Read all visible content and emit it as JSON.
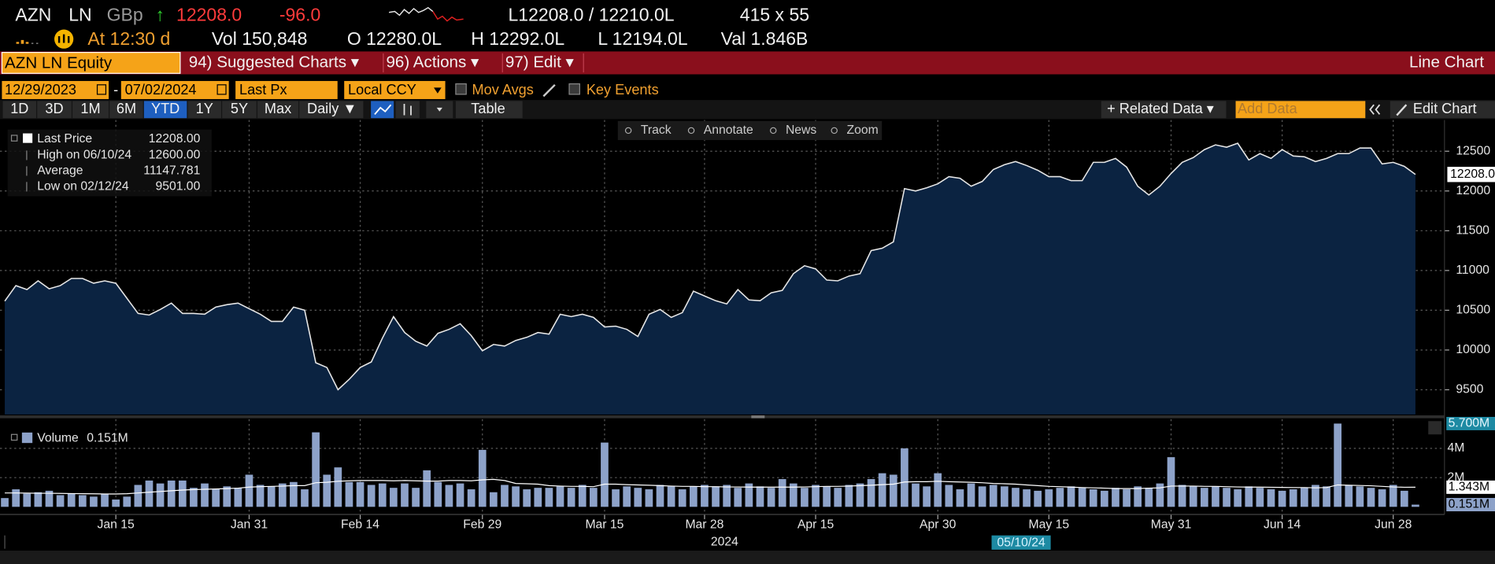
{
  "header": {
    "ticker": "AZN",
    "exchange": "LN",
    "currency": "GBp",
    "arrow": "↑",
    "last": "12208.0",
    "change": "-96.0",
    "bid_ask": "L12208.0 / 12210.0L",
    "size": "415 x 55",
    "time": "At 12:30 d",
    "volume": "Vol 150,848",
    "open": "O 12280.0L",
    "high": "H 12292.0L",
    "low": "L 12194.0L",
    "value": "Val 1.846B"
  },
  "command_bar": {
    "security": "AZN LN Equity",
    "menus": [
      "94) Suggested Charts ▾",
      "96) Actions ▾",
      "97) Edit ▾"
    ],
    "chart_name": "Line Chart"
  },
  "settings": {
    "start": "12/29/2023",
    "dash": "-",
    "end": "07/02/2024",
    "field": "Last Px",
    "currency": "Local CCY",
    "mov_avgs": "Mov Avgs",
    "key_events": "Key Events"
  },
  "toolbar": {
    "periods": [
      "1D",
      "3D",
      "1M",
      "6M",
      "YTD",
      "1Y",
      "5Y",
      "Max"
    ],
    "active_period": 4,
    "frequency": "Daily ▼",
    "table": "Table",
    "related": "+ Related Data ▾",
    "add_data": "Add Data",
    "edit_chart": "Edit Chart"
  },
  "chart_tools": [
    "Track",
    "Annotate",
    "News",
    "Zoom"
  ],
  "chart_data": {
    "type": "line",
    "categories": [
      null,
      null,
      null,
      null,
      null,
      null,
      null,
      null,
      null,
      null,
      "Jan 15",
      null,
      null,
      null,
      null,
      null,
      null,
      null,
      null,
      null,
      null,
      null,
      "Jan 31",
      null,
      null,
      null,
      null,
      null,
      null,
      null,
      null,
      null,
      "Feb 14",
      null,
      null,
      null,
      null,
      null,
      null,
      null,
      null,
      null,
      null,
      "Feb 29",
      null,
      null,
      null,
      null,
      null,
      null,
      null,
      null,
      null,
      null,
      "Mar 15",
      null,
      null,
      null,
      null,
      null,
      null,
      null,
      null,
      "Mar 28",
      null,
      null,
      null,
      null,
      null,
      null,
      null,
      null,
      null,
      "Apr 15",
      null,
      null,
      null,
      null,
      null,
      null,
      null,
      null,
      null,
      null,
      "Apr 30",
      null,
      null,
      null,
      null,
      null,
      null,
      null,
      null,
      null,
      "May 15",
      null,
      null,
      null,
      null,
      null,
      null,
      null,
      null,
      null,
      null,
      "May 31",
      null,
      null,
      null,
      null,
      null,
      null,
      null,
      null,
      null,
      "Jun 14",
      null,
      null,
      null,
      null,
      null,
      null,
      null,
      null,
      null,
      "Jun 28",
      null,
      null
    ],
    "year_label": "2024",
    "cursor_label": "05/10/24",
    "series": [
      {
        "name": "Last Price",
        "legend_value": "12208.00",
        "color": "#e6e6e6",
        "fill": "#0b2341",
        "values": [
          10615,
          10810,
          10760,
          10870,
          10770,
          10810,
          10900,
          10900,
          10840,
          10870,
          10840,
          10650,
          10460,
          10440,
          10510,
          10590,
          10460,
          10460,
          10450,
          10540,
          10570,
          10590,
          10520,
          10450,
          10360,
          10360,
          10540,
          10500,
          9840,
          9780,
          9501,
          9630,
          9780,
          9850,
          10150,
          10420,
          10220,
          10110,
          10050,
          10210,
          10260,
          10330,
          10180,
          9990,
          10070,
          10050,
          10120,
          10160,
          10220,
          10200,
          10450,
          10420,
          10450,
          10410,
          10290,
          10300,
          10260,
          10170,
          10450,
          10510,
          10410,
          10470,
          10740,
          10680,
          10620,
          10580,
          10760,
          10630,
          10620,
          10720,
          10750,
          10960,
          11060,
          11020,
          10880,
          10870,
          10930,
          10960,
          11250,
          11280,
          11360,
          12030,
          12000,
          12040,
          12090,
          12180,
          12160,
          12060,
          12120,
          12270,
          12330,
          12370,
          12320,
          12260,
          12180,
          12180,
          12130,
          12130,
          12360,
          12360,
          12410,
          12300,
          12060,
          11950,
          12060,
          12220,
          12360,
          12420,
          12520,
          12580,
          12550,
          12600,
          12390,
          12470,
          12410,
          12520,
          12440,
          12430,
          12370,
          12410,
          12470,
          12470,
          12540,
          12540,
          12340,
          12360,
          12310,
          12208
        ]
      }
    ],
    "legend": [
      {
        "label": "High on 06/10/24",
        "value": "12600.00"
      },
      {
        "label": "Average",
        "value": "11147.781"
      },
      {
        "label": "Low on 02/12/24",
        "value": "9501.00"
      }
    ],
    "ylim": [
      9190,
      12880
    ],
    "yticks": [
      9500,
      10000,
      10500,
      11000,
      11500,
      12000,
      12500
    ],
    "grid": true,
    "last_label": {
      "value": 12208,
      "label": "12208.0"
    },
    "volume": {
      "type": "bar",
      "name": "Volume",
      "legend_value": "0.151M",
      "color": "#8da2c9",
      "values": [
        0.6,
        1.2,
        0.9,
        1.0,
        1.1,
        0.8,
        0.9,
        0.8,
        0.7,
        0.9,
        0.5,
        0.7,
        1.5,
        1.8,
        1.6,
        1.8,
        1.8,
        1.3,
        1.6,
        1.2,
        1.4,
        1.3,
        2.2,
        1.5,
        1.4,
        1.6,
        1.7,
        1.2,
        5.1,
        2.2,
        2.7,
        1.7,
        1.7,
        1.5,
        1.6,
        1.3,
        1.6,
        1.3,
        2.5,
        1.7,
        1.5,
        1.6,
        1.2,
        3.9,
        1.0,
        1.5,
        1.4,
        1.2,
        1.3,
        1.3,
        1.4,
        1.3,
        1.5,
        1.3,
        4.4,
        1.2,
        1.4,
        1.3,
        1.2,
        1.5,
        1.4,
        1.2,
        1.4,
        1.5,
        1.4,
        1.5,
        1.3,
        1.6,
        1.4,
        1.3,
        1.9,
        1.6,
        1.3,
        1.5,
        1.4,
        1.3,
        1.5,
        1.6,
        1.9,
        2.3,
        2.2,
        4.0,
        1.6,
        1.4,
        2.3,
        1.5,
        1.2,
        1.6,
        1.4,
        1.5,
        1.4,
        1.3,
        1.2,
        1.1,
        1.2,
        1.3,
        1.4,
        1.3,
        1.2,
        1.1,
        1.3,
        1.2,
        1.4,
        1.3,
        1.6,
        3.4,
        1.5,
        1.4,
        1.3,
        1.4,
        1.3,
        1.2,
        1.4,
        1.3,
        1.2,
        1.1,
        1.2,
        1.3,
        1.5,
        1.4,
        5.7,
        1.5,
        1.4,
        1.3,
        1.2,
        1.5,
        1.1,
        0.151
      ],
      "average": {
        "color": "#ffffff",
        "values": [
          0.95,
          0.95,
          0.94,
          0.93,
          0.93,
          0.92,
          0.91,
          0.9,
          0.89,
          0.88,
          0.88,
          0.9,
          0.95,
          1.0,
          1.05,
          1.1,
          1.15,
          1.18,
          1.2,
          1.22,
          1.25,
          1.28,
          1.35,
          1.38,
          1.4,
          1.42,
          1.45,
          1.45,
          1.65,
          1.68,
          1.75,
          1.78,
          1.8,
          1.8,
          1.8,
          1.78,
          1.8,
          1.78,
          1.76,
          1.76,
          1.8,
          1.8,
          1.78,
          1.85,
          1.88,
          1.8,
          1.6,
          1.58,
          1.55,
          1.45,
          1.42,
          1.4,
          1.4,
          1.38,
          1.55,
          1.55,
          1.52,
          1.5,
          1.48,
          1.45,
          1.42,
          1.4,
          1.4,
          1.38,
          1.38,
          1.36,
          1.36,
          1.35,
          1.35,
          1.35,
          1.35,
          1.35,
          1.36,
          1.38,
          1.4,
          1.4,
          1.42,
          1.45,
          1.48,
          1.52,
          1.55,
          1.7,
          1.72,
          1.72,
          1.75,
          1.72,
          1.7,
          1.68,
          1.65,
          1.6,
          1.58,
          1.55,
          1.5,
          1.45,
          1.4,
          1.38,
          1.35,
          1.32,
          1.3,
          1.28,
          1.25,
          1.25,
          1.25,
          1.28,
          1.3,
          1.42,
          1.42,
          1.42,
          1.4,
          1.4,
          1.38,
          1.36,
          1.35,
          1.35,
          1.34,
          1.33,
          1.32,
          1.32,
          1.3,
          1.32,
          1.5,
          1.48,
          1.46,
          1.44,
          1.4,
          1.36,
          1.34,
          1.343
        ]
      },
      "ylim": [
        0,
        6
      ],
      "yticks": [
        {
          "value": 2,
          "label": "2M"
        },
        {
          "value": 4,
          "label": "4M"
        }
      ],
      "markers": [
        {
          "value": 5.7,
          "label": "5.700M"
        },
        {
          "value": 1.343,
          "label": "1.343M"
        },
        {
          "value": 0.151,
          "label": "0.151M"
        }
      ]
    }
  }
}
